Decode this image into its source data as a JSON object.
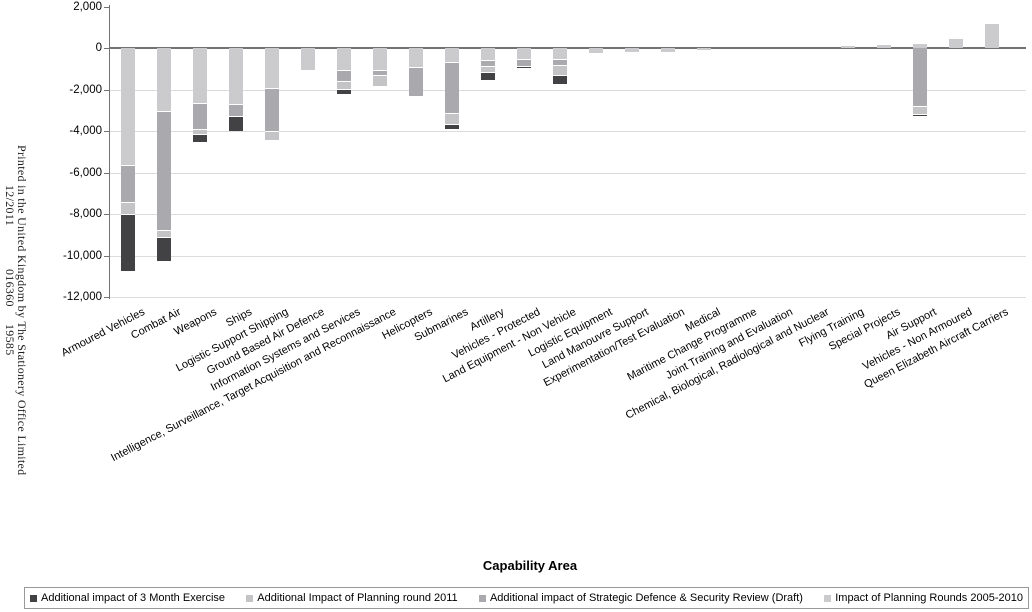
{
  "imprint": {
    "line1": "Printed in the United Kingdom by The Stationery Office Limited",
    "codes": [
      "12/2011",
      "016360",
      "19585"
    ]
  },
  "colors": {
    "axis": "#737373",
    "gridline": "#dcdcdc",
    "legend_border": "#999999",
    "background": "#ffffff"
  },
  "chart_data": {
    "type": "bar",
    "stacked": true,
    "title": "",
    "xlabel": "Capability Area",
    "ylabel": "",
    "ylim": [
      -12000,
      2000
    ],
    "ytick_interval": 2000,
    "ytick_labels": [
      "2,000",
      "0",
      "-2,000",
      "-4,000",
      "-6,000",
      "-8,000",
      "-10,000",
      "-12,000"
    ],
    "grid": "horizontal-light",
    "legend_position": "bottom-boxed",
    "stack_note": "segments stack from the zero axis outward in reverse legend order (lightest series nearest axis, darkest at bar end)",
    "categories": [
      "Armoured Vehicles",
      "Combat Air",
      "Weapons",
      "Ships",
      "Logistic Support Shipping",
      "Ground Based Air Defence",
      "Information Systems and Services",
      "Intelligence, Surveillance, Target Acquisition and Reconnaissance",
      "Helicopters",
      "Submarines",
      "Artillery",
      "Vehicles - Protected",
      "Land Equipment - Non Vehicle",
      "Logistic Equipment",
      "Land Manouvre Support",
      "Experimentation/Test Evaluation",
      "Medical",
      "Maritime Change Programme",
      "Joint Training and Evaluation",
      "Chemical, Biological, Radiological and Nuclear",
      "Flying Training",
      "Special Projects",
      "Air Support",
      "Vehicles - Non Armoured",
      "Queen Elizabeth Aircraft Carriers"
    ],
    "series": [
      {
        "name": "Additional impact of 3 Month Exercise",
        "color": "#424245",
        "values": [
          -2750,
          -1150,
          -350,
          -750,
          0,
          0,
          -250,
          0,
          0,
          -250,
          -350,
          -100,
          -400,
          0,
          0,
          0,
          0,
          0,
          0,
          0,
          0,
          0,
          -100,
          0,
          0
        ]
      },
      {
        "name": "Additional Impact of Planning round 2011",
        "color": "#c4c4c7",
        "values": [
          -600,
          -350,
          -250,
          0,
          -400,
          0,
          -400,
          -500,
          0,
          -550,
          -300,
          0,
          -500,
          0,
          0,
          0,
          0,
          0,
          0,
          0,
          0,
          0,
          -350,
          0,
          0
        ]
      },
      {
        "name": "Additional impact of Strategic Defence & Security Review (Draft)",
        "color": "#aaaaae",
        "values": [
          -1750,
          -5750,
          -1250,
          -550,
          -2100,
          0,
          -500,
          -250,
          -1400,
          -2450,
          -300,
          -350,
          -300,
          0,
          0,
          0,
          0,
          0,
          0,
          0,
          0,
          0,
          -2800,
          0,
          0
        ]
      },
      {
        "name": "Impact of Planning Rounds 2005-2010",
        "color": "#cbcbce",
        "values": [
          -5650,
          -3000,
          -2650,
          -2700,
          -1900,
          -1050,
          -1050,
          -1050,
          -900,
          -650,
          -550,
          -500,
          -500,
          -200,
          -150,
          -150,
          -100,
          0,
          0,
          0,
          100,
          150,
          200,
          450,
          1200
        ]
      }
    ]
  }
}
